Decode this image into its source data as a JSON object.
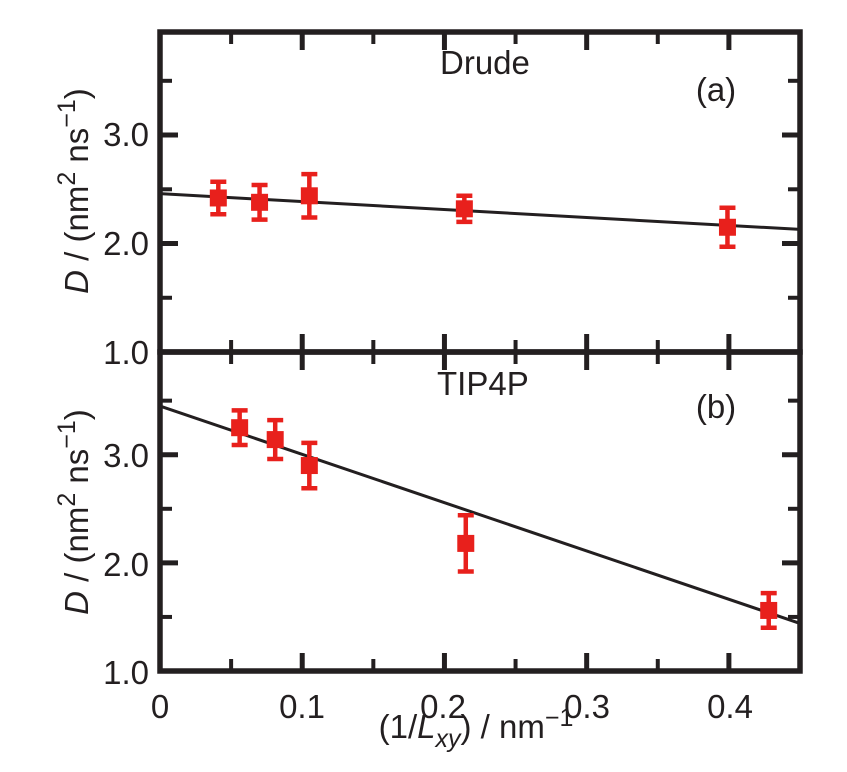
{
  "colors": {
    "marker": "#e8201c",
    "line": "#231f20",
    "text": "#231f20",
    "background": "#ffffff"
  },
  "x_axis": {
    "label_parts": [
      "(1/",
      "L",
      "xy",
      ") / nm",
      "−1"
    ],
    "tick_labels": [
      "0",
      "0.1",
      "0.2",
      "0.3",
      "0.4"
    ],
    "tick_values": [
      0,
      0.1,
      0.2,
      0.3,
      0.4
    ],
    "minor_tick_values": [
      0.05,
      0.15,
      0.25,
      0.35
    ],
    "range": [
      0,
      0.45
    ]
  },
  "y_axis": {
    "label_parts": [
      "D",
      " / (nm",
      "2",
      " ns",
      "−1",
      ")"
    ],
    "tick_labels": [
      "3.0",
      "2.0",
      "1.0"
    ],
    "tick_values": [
      3.0,
      2.0,
      1.0
    ],
    "minor_tick_values": [
      1.5,
      2.5,
      3.5
    ],
    "range": [
      1.0,
      3.95
    ]
  },
  "chart_data": [
    {
      "type": "scatter",
      "panel": "a",
      "title": "Drude",
      "tag": "(a)",
      "xlabel": "(1/Lxy) / nm−1",
      "ylabel": "D / (nm2 ns−1)",
      "xlim": [
        0,
        0.45
      ],
      "ylim": [
        1.0,
        3.95
      ],
      "x": [
        0.041,
        0.07,
        0.105,
        0.214,
        0.399
      ],
      "y": [
        2.42,
        2.38,
        2.44,
        2.32,
        2.15
      ],
      "yerr": [
        0.15,
        0.16,
        0.2,
        0.12,
        0.18
      ],
      "fit_line": {
        "x": [
          0,
          0.45
        ],
        "y": [
          2.46,
          2.13
        ]
      }
    },
    {
      "type": "scatter",
      "panel": "b",
      "title": "TIP4P",
      "tag": "(b)",
      "xlabel": "(1/Lxy) / nm−1",
      "ylabel": "D / (nm2 ns−1)",
      "xlim": [
        0,
        0.45
      ],
      "ylim": [
        1.0,
        3.95
      ],
      "x": [
        0.056,
        0.081,
        0.105,
        0.215,
        0.428
      ],
      "y": [
        3.25,
        3.14,
        2.9,
        2.18,
        1.56
      ],
      "yerr": [
        0.16,
        0.18,
        0.21,
        0.26,
        0.16
      ],
      "fit_line": {
        "x": [
          0,
          0.45
        ],
        "y": [
          3.45,
          1.44
        ]
      }
    }
  ]
}
